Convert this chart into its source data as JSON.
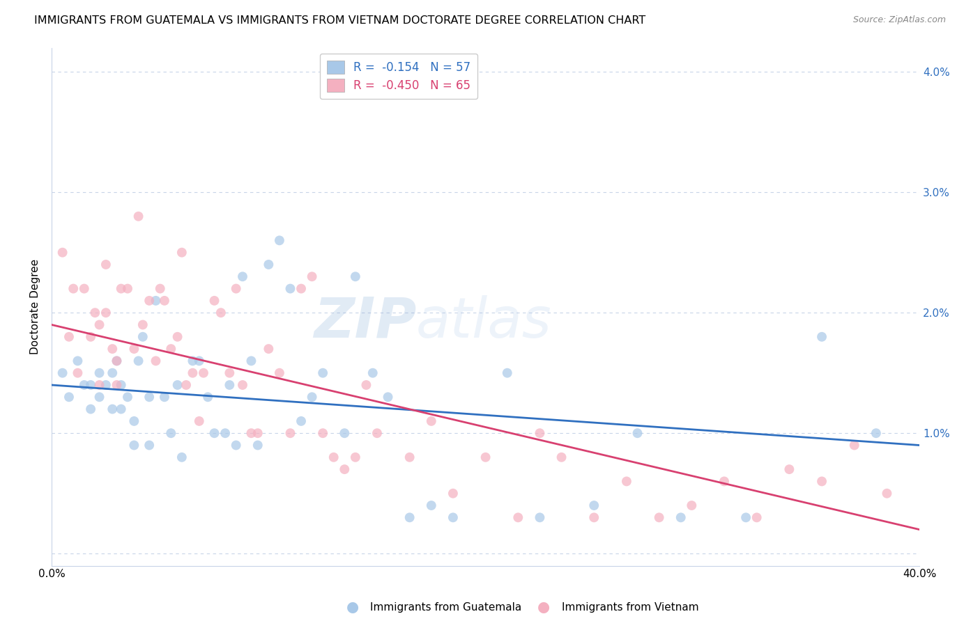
{
  "title": "IMMIGRANTS FROM GUATEMALA VS IMMIGRANTS FROM VIETNAM DOCTORATE DEGREE CORRELATION CHART",
  "source": "Source: ZipAtlas.com",
  "ylabel": "Doctorate Degree",
  "xlim": [
    0.0,
    0.4
  ],
  "ylim": [
    -0.001,
    0.042
  ],
  "yticks": [
    0.0,
    0.01,
    0.02,
    0.03,
    0.04
  ],
  "ytick_labels": [
    "",
    "1.0%",
    "2.0%",
    "3.0%",
    "4.0%"
  ],
  "xticks": [
    0.0,
    0.1,
    0.2,
    0.3,
    0.4
  ],
  "xtick_labels": [
    "0.0%",
    "",
    "",
    "",
    "40.0%"
  ],
  "legend_label_blue": "R =  -0.154   N = 57",
  "legend_label_pink": "R =  -0.450   N = 65",
  "footer_blue": "Immigrants from Guatemala",
  "footer_pink": "Immigrants from Vietnam",
  "blue_color": "#a8c8e8",
  "pink_color": "#f4b0c0",
  "blue_line_color": "#3070c0",
  "pink_line_color": "#d84070",
  "watermark_zip": "ZIP",
  "watermark_atlas": "atlas",
  "background_color": "#ffffff",
  "grid_color": "#c8d4e8",
  "title_fontsize": 11.5,
  "axis_label_fontsize": 11,
  "tick_fontsize": 11,
  "dot_size": 100,
  "dot_alpha": 0.7,
  "blue_line_start_y": 0.014,
  "blue_line_end_y": 0.009,
  "pink_line_start_y": 0.019,
  "pink_line_end_y": 0.002,
  "blue_x": [
    0.005,
    0.008,
    0.012,
    0.015,
    0.018,
    0.018,
    0.022,
    0.022,
    0.025,
    0.028,
    0.028,
    0.03,
    0.032,
    0.032,
    0.035,
    0.038,
    0.038,
    0.04,
    0.042,
    0.045,
    0.045,
    0.048,
    0.052,
    0.055,
    0.058,
    0.06,
    0.065,
    0.068,
    0.072,
    0.075,
    0.08,
    0.082,
    0.085,
    0.088,
    0.092,
    0.095,
    0.1,
    0.105,
    0.11,
    0.115,
    0.12,
    0.125,
    0.135,
    0.14,
    0.148,
    0.155,
    0.165,
    0.175,
    0.185,
    0.21,
    0.225,
    0.25,
    0.27,
    0.29,
    0.32,
    0.355,
    0.38
  ],
  "blue_y": [
    0.015,
    0.013,
    0.016,
    0.014,
    0.014,
    0.012,
    0.015,
    0.013,
    0.014,
    0.015,
    0.012,
    0.016,
    0.014,
    0.012,
    0.013,
    0.011,
    0.009,
    0.016,
    0.018,
    0.013,
    0.009,
    0.021,
    0.013,
    0.01,
    0.014,
    0.008,
    0.016,
    0.016,
    0.013,
    0.01,
    0.01,
    0.014,
    0.009,
    0.023,
    0.016,
    0.009,
    0.024,
    0.026,
    0.022,
    0.011,
    0.013,
    0.015,
    0.01,
    0.023,
    0.015,
    0.013,
    0.003,
    0.004,
    0.003,
    0.015,
    0.003,
    0.004,
    0.01,
    0.003,
    0.003,
    0.018,
    0.01
  ],
  "pink_x": [
    0.005,
    0.008,
    0.01,
    0.012,
    0.015,
    0.018,
    0.02,
    0.022,
    0.022,
    0.025,
    0.025,
    0.028,
    0.03,
    0.03,
    0.032,
    0.035,
    0.038,
    0.04,
    0.042,
    0.045,
    0.048,
    0.05,
    0.052,
    0.055,
    0.058,
    0.06,
    0.062,
    0.065,
    0.068,
    0.07,
    0.075,
    0.078,
    0.082,
    0.085,
    0.088,
    0.092,
    0.095,
    0.1,
    0.105,
    0.11,
    0.115,
    0.12,
    0.125,
    0.13,
    0.135,
    0.14,
    0.145,
    0.15,
    0.165,
    0.175,
    0.185,
    0.2,
    0.215,
    0.225,
    0.235,
    0.25,
    0.265,
    0.28,
    0.295,
    0.31,
    0.325,
    0.34,
    0.355,
    0.37,
    0.385
  ],
  "pink_y": [
    0.025,
    0.018,
    0.022,
    0.015,
    0.022,
    0.018,
    0.02,
    0.014,
    0.019,
    0.024,
    0.02,
    0.017,
    0.016,
    0.014,
    0.022,
    0.022,
    0.017,
    0.028,
    0.019,
    0.021,
    0.016,
    0.022,
    0.021,
    0.017,
    0.018,
    0.025,
    0.014,
    0.015,
    0.011,
    0.015,
    0.021,
    0.02,
    0.015,
    0.022,
    0.014,
    0.01,
    0.01,
    0.017,
    0.015,
    0.01,
    0.022,
    0.023,
    0.01,
    0.008,
    0.007,
    0.008,
    0.014,
    0.01,
    0.008,
    0.011,
    0.005,
    0.008,
    0.003,
    0.01,
    0.008,
    0.003,
    0.006,
    0.003,
    0.004,
    0.006,
    0.003,
    0.007,
    0.006,
    0.009,
    0.005
  ]
}
